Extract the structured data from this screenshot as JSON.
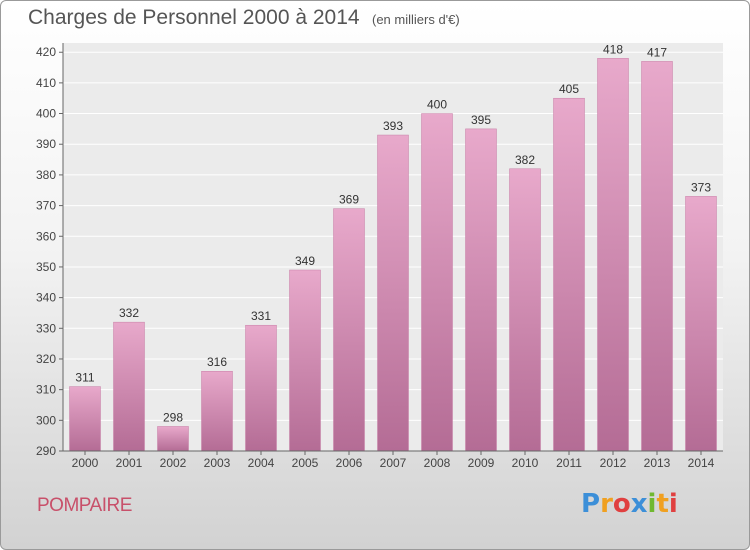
{
  "chart_data": {
    "type": "bar",
    "title": "Charges de Personnel 2000 à 2014",
    "subtitle": "(en milliers d'€)",
    "categories": [
      "2000",
      "2001",
      "2002",
      "2003",
      "2004",
      "2005",
      "2006",
      "2007",
      "2008",
      "2009",
      "2010",
      "2011",
      "2012",
      "2013",
      "2014"
    ],
    "values": [
      311,
      332,
      298,
      316,
      331,
      349,
      369,
      393,
      400,
      395,
      382,
      405,
      418,
      417,
      373
    ],
    "ylim": [
      290,
      420
    ],
    "yticks": [
      290,
      300,
      310,
      320,
      330,
      340,
      350,
      360,
      370,
      380,
      390,
      400,
      410,
      420
    ],
    "xlabel": "",
    "ylabel": "",
    "grid": true,
    "bar_color": "#d98fb6"
  },
  "location": "POMPAIRE",
  "logo": {
    "letters": [
      "P",
      "r",
      "o",
      "x",
      "i",
      "t",
      "i"
    ],
    "colors": [
      "#3c8fd8",
      "#f0a020",
      "#e04040",
      "#3c8fd8",
      "#70b830",
      "#f0a020",
      "#e04040"
    ]
  }
}
